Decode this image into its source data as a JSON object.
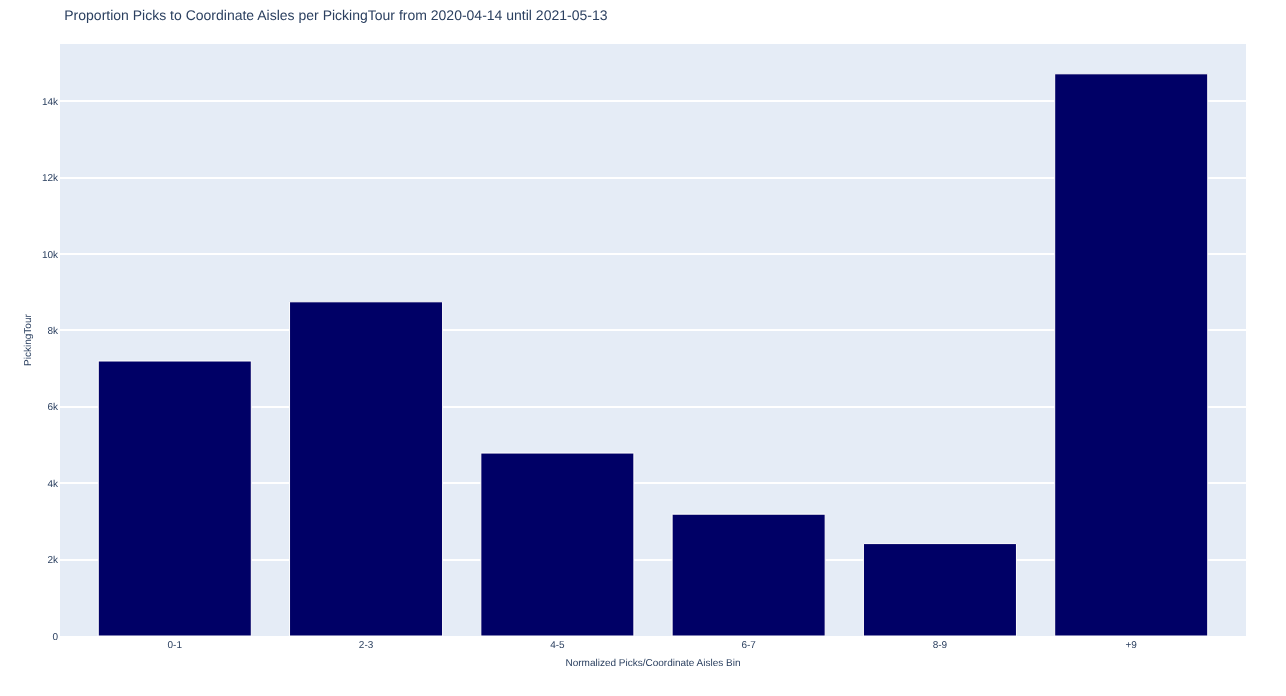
{
  "chart_data": {
    "type": "bar",
    "title": "Proportion Picks to Coordinate Aisles per PickingTour from 2020-04-14 until 2021-05-13",
    "xlabel": "Normalized Picks/Coordinate Aisles Bin",
    "ylabel": "PickingTour",
    "categories": [
      "0-1",
      "2-3",
      "4-5",
      "6-7",
      "8-9",
      "+9"
    ],
    "values": [
      7200,
      8750,
      4790,
      3190,
      2420,
      14720
    ],
    "color": "#000066",
    "ylim": [
      0,
      15500
    ],
    "yticks": [
      0,
      {
        "value": 2000,
        "label": "2k"
      },
      {
        "value": 4000,
        "label": "4k"
      },
      {
        "value": 6000,
        "label": "6k"
      },
      {
        "value": 8000,
        "label": "8k"
      },
      {
        "value": 10000,
        "label": "10k"
      },
      {
        "value": 12000,
        "label": "12k"
      },
      {
        "value": 14000,
        "label": "14k"
      }
    ],
    "grid": "y",
    "legend": false
  }
}
